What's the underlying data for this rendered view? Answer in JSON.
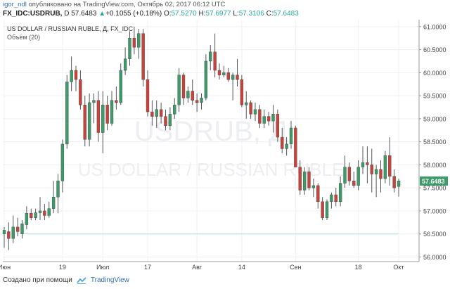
{
  "header": {
    "user": "igor_ndl",
    "published": "опубликовано на TradingView.com, Октябрь 02, 2017 06:12 UTC",
    "symbol": "FX_IDC:USDRUB,",
    "timeframe": "D",
    "last": "57.6483",
    "change_arrow": "▲",
    "change": "+0.1055 (+0.18%)",
    "open_label": "O:",
    "open": "57.5270",
    "high_label": "H:",
    "high": "57.6977",
    "low_label": "L:",
    "low": "57.3106",
    "close_label": "C:",
    "close": "57.6483"
  },
  "chart_title": "US DOLLAR / RUSSIAN RUBLE, Д, FX_IDC",
  "volume_label": "Объём (20)",
  "watermark": {
    "symbol": "USDRUB, Д",
    "name": "US DOLLAR / RUSSIAN RUBLE"
  },
  "footer": {
    "created_with": "Создано при помощи",
    "brand": "TradingView"
  },
  "colors": {
    "up": "#3d9b69",
    "down": "#c9413b",
    "grid": "#eef0f3",
    "axis_text": "#444444",
    "price_tag": "#3d9b69",
    "hline": "#b5dfe0"
  },
  "chart_data": {
    "type": "candlestick",
    "title": "US DOLLAR / RUSSIAN RUBLE, Д, FX_IDC",
    "ylim": [
      55.9,
      61.15
    ],
    "yticks": [
      "56.0000",
      "56.5000",
      "57.0000",
      "57.5000",
      "58.0000",
      "58.5000",
      "59.0000",
      "59.5000",
      "60.0000",
      "60.5000",
      "61.0000"
    ],
    "x_tick_labels": [
      {
        "label": "Июн",
        "index": 0
      },
      {
        "label": "19",
        "index": 13
      },
      {
        "label": "Июл",
        "index": 22
      },
      {
        "label": "17",
        "index": 32
      },
      {
        "label": "Авг",
        "index": 43
      },
      {
        "label": "14",
        "index": 53
      },
      {
        "label": "Сен",
        "index": 65
      },
      {
        "label": "18",
        "index": 79
      },
      {
        "label": "Окт",
        "index": 88
      }
    ],
    "last_price": "57.6483",
    "volume_line_level": 56.5,
    "candles": [
      {
        "o": 56.5,
        "h": 56.65,
        "l": 56.2,
        "c": 56.58
      },
      {
        "o": 56.55,
        "h": 56.75,
        "l": 56.15,
        "c": 56.4
      },
      {
        "o": 56.4,
        "h": 56.9,
        "l": 56.3,
        "c": 56.65
      },
      {
        "o": 56.65,
        "h": 56.85,
        "l": 56.45,
        "c": 56.55
      },
      {
        "o": 56.5,
        "h": 56.8,
        "l": 56.4,
        "c": 56.72
      },
      {
        "o": 56.7,
        "h": 57.1,
        "l": 56.6,
        "c": 56.95
      },
      {
        "o": 56.95,
        "h": 57.05,
        "l": 56.8,
        "c": 56.85
      },
      {
        "o": 56.85,
        "h": 57.05,
        "l": 56.8,
        "c": 56.96
      },
      {
        "o": 56.96,
        "h": 57.3,
        "l": 56.8,
        "c": 57.0
      },
      {
        "o": 57.0,
        "h": 57.15,
        "l": 56.8,
        "c": 56.9
      },
      {
        "o": 56.9,
        "h": 57.2,
        "l": 56.85,
        "c": 57.05
      },
      {
        "o": 57.05,
        "h": 57.65,
        "l": 56.95,
        "c": 57.3
      },
      {
        "o": 57.3,
        "h": 57.8,
        "l": 56.95,
        "c": 57.65
      },
      {
        "o": 57.65,
        "h": 58.55,
        "l": 57.4,
        "c": 58.45
      },
      {
        "o": 58.45,
        "h": 59.95,
        "l": 58.35,
        "c": 59.8
      },
      {
        "o": 59.8,
        "h": 60.35,
        "l": 59.6,
        "c": 60.05
      },
      {
        "o": 60.05,
        "h": 60.15,
        "l": 59.6,
        "c": 59.85
      },
      {
        "o": 59.85,
        "h": 60.05,
        "l": 59.2,
        "c": 59.3
      },
      {
        "o": 59.3,
        "h": 59.5,
        "l": 58.4,
        "c": 58.55
      },
      {
        "o": 58.55,
        "h": 59.55,
        "l": 58.4,
        "c": 59.35
      },
      {
        "o": 59.35,
        "h": 59.55,
        "l": 58.9,
        "c": 59.4
      },
      {
        "o": 59.4,
        "h": 59.6,
        "l": 58.5,
        "c": 58.7
      },
      {
        "o": 58.7,
        "h": 59.6,
        "l": 58.25,
        "c": 59.3
      },
      {
        "o": 59.3,
        "h": 59.5,
        "l": 58.75,
        "c": 58.9
      },
      {
        "o": 58.9,
        "h": 59.6,
        "l": 58.85,
        "c": 59.4
      },
      {
        "o": 59.4,
        "h": 59.7,
        "l": 59.2,
        "c": 59.35
      },
      {
        "o": 59.35,
        "h": 60.2,
        "l": 59.3,
        "c": 60.05
      },
      {
        "o": 60.05,
        "h": 60.55,
        "l": 59.95,
        "c": 60.3
      },
      {
        "o": 60.3,
        "h": 60.9,
        "l": 60.15,
        "c": 60.75
      },
      {
        "o": 60.75,
        "h": 61.0,
        "l": 60.4,
        "c": 60.55
      },
      {
        "o": 60.55,
        "h": 60.95,
        "l": 60.3,
        "c": 60.85
      },
      {
        "o": 60.85,
        "h": 60.95,
        "l": 59.7,
        "c": 59.85
      },
      {
        "o": 59.85,
        "h": 60.05,
        "l": 59.05,
        "c": 59.15
      },
      {
        "o": 59.15,
        "h": 59.4,
        "l": 58.85,
        "c": 59.05
      },
      {
        "o": 59.05,
        "h": 59.4,
        "l": 58.8,
        "c": 59.2
      },
      {
        "o": 59.2,
        "h": 59.35,
        "l": 58.9,
        "c": 59.05
      },
      {
        "o": 59.05,
        "h": 59.2,
        "l": 58.75,
        "c": 58.85
      },
      {
        "o": 58.85,
        "h": 59.25,
        "l": 58.75,
        "c": 59.1
      },
      {
        "o": 59.1,
        "h": 59.45,
        "l": 59.0,
        "c": 59.3
      },
      {
        "o": 59.3,
        "h": 60.1,
        "l": 59.15,
        "c": 59.95
      },
      {
        "o": 59.95,
        "h": 60.0,
        "l": 59.3,
        "c": 59.45
      },
      {
        "o": 59.45,
        "h": 59.7,
        "l": 59.35,
        "c": 59.6
      },
      {
        "o": 59.6,
        "h": 59.85,
        "l": 59.3,
        "c": 59.4
      },
      {
        "o": 59.4,
        "h": 59.55,
        "l": 59.15,
        "c": 59.35
      },
      {
        "o": 59.35,
        "h": 59.55,
        "l": 59.2,
        "c": 59.45
      },
      {
        "o": 59.45,
        "h": 60.4,
        "l": 59.4,
        "c": 60.25
      },
      {
        "o": 60.25,
        "h": 60.6,
        "l": 60.05,
        "c": 60.45
      },
      {
        "o": 60.45,
        "h": 60.85,
        "l": 59.9,
        "c": 60.05
      },
      {
        "o": 60.05,
        "h": 60.2,
        "l": 59.85,
        "c": 59.95
      },
      {
        "o": 59.95,
        "h": 60.15,
        "l": 59.9,
        "c": 60.0
      },
      {
        "o": 60.0,
        "h": 60.1,
        "l": 59.8,
        "c": 59.85
      },
      {
        "o": 59.85,
        "h": 60.0,
        "l": 59.4,
        "c": 59.95
      },
      {
        "o": 59.95,
        "h": 60.3,
        "l": 59.7,
        "c": 59.85
      },
      {
        "o": 59.85,
        "h": 59.95,
        "l": 59.25,
        "c": 59.3
      },
      {
        "o": 59.3,
        "h": 59.6,
        "l": 59.0,
        "c": 59.35
      },
      {
        "o": 59.35,
        "h": 59.4,
        "l": 59.0,
        "c": 59.1
      },
      {
        "o": 59.1,
        "h": 59.35,
        "l": 58.95,
        "c": 59.2
      },
      {
        "o": 59.2,
        "h": 59.3,
        "l": 58.8,
        "c": 58.9
      },
      {
        "o": 58.9,
        "h": 59.2,
        "l": 58.8,
        "c": 59.05
      },
      {
        "o": 59.05,
        "h": 59.15,
        "l": 58.85,
        "c": 58.95
      },
      {
        "o": 58.95,
        "h": 59.3,
        "l": 58.7,
        "c": 59.1
      },
      {
        "o": 59.1,
        "h": 59.2,
        "l": 58.5,
        "c": 58.6
      },
      {
        "o": 58.6,
        "h": 58.8,
        "l": 58.25,
        "c": 58.35
      },
      {
        "o": 58.35,
        "h": 58.6,
        "l": 58.2,
        "c": 58.45
      },
      {
        "o": 58.45,
        "h": 58.95,
        "l": 58.35,
        "c": 58.8
      },
      {
        "o": 58.8,
        "h": 58.85,
        "l": 58.0,
        "c": 57.95
      },
      {
        "o": 57.95,
        "h": 58.1,
        "l": 57.35,
        "c": 57.45
      },
      {
        "o": 57.45,
        "h": 57.95,
        "l": 57.35,
        "c": 57.85
      },
      {
        "o": 57.85,
        "h": 57.95,
        "l": 57.45,
        "c": 57.5
      },
      {
        "o": 57.5,
        "h": 57.7,
        "l": 57.3,
        "c": 57.55
      },
      {
        "o": 57.55,
        "h": 57.6,
        "l": 57.05,
        "c": 57.2
      },
      {
        "o": 57.2,
        "h": 57.3,
        "l": 56.8,
        "c": 56.85
      },
      {
        "o": 56.85,
        "h": 57.25,
        "l": 56.8,
        "c": 57.2
      },
      {
        "o": 57.2,
        "h": 57.4,
        "l": 57.05,
        "c": 57.35
      },
      {
        "o": 57.35,
        "h": 57.5,
        "l": 57.1,
        "c": 57.2
      },
      {
        "o": 57.2,
        "h": 57.75,
        "l": 57.1,
        "c": 57.6
      },
      {
        "o": 57.6,
        "h": 58.2,
        "l": 57.5,
        "c": 57.95
      },
      {
        "o": 57.95,
        "h": 58.05,
        "l": 57.55,
        "c": 57.65
      },
      {
        "o": 57.65,
        "h": 57.85,
        "l": 57.5,
        "c": 57.55
      },
      {
        "o": 57.55,
        "h": 58.1,
        "l": 57.45,
        "c": 57.95
      },
      {
        "o": 57.95,
        "h": 58.4,
        "l": 57.8,
        "c": 58.05
      },
      {
        "o": 58.05,
        "h": 58.4,
        "l": 57.6,
        "c": 58.0
      },
      {
        "o": 58.0,
        "h": 58.35,
        "l": 57.4,
        "c": 57.8
      },
      {
        "o": 57.8,
        "h": 58.0,
        "l": 57.3,
        "c": 57.9
      },
      {
        "o": 57.9,
        "h": 58.1,
        "l": 57.4,
        "c": 57.7
      },
      {
        "o": 57.7,
        "h": 58.3,
        "l": 57.6,
        "c": 58.2
      },
      {
        "o": 58.2,
        "h": 58.6,
        "l": 57.55,
        "c": 57.75
      },
      {
        "o": 57.75,
        "h": 57.9,
        "l": 57.4,
        "c": 57.5
      },
      {
        "o": 57.53,
        "h": 57.7,
        "l": 57.31,
        "c": 57.65
      }
    ]
  }
}
